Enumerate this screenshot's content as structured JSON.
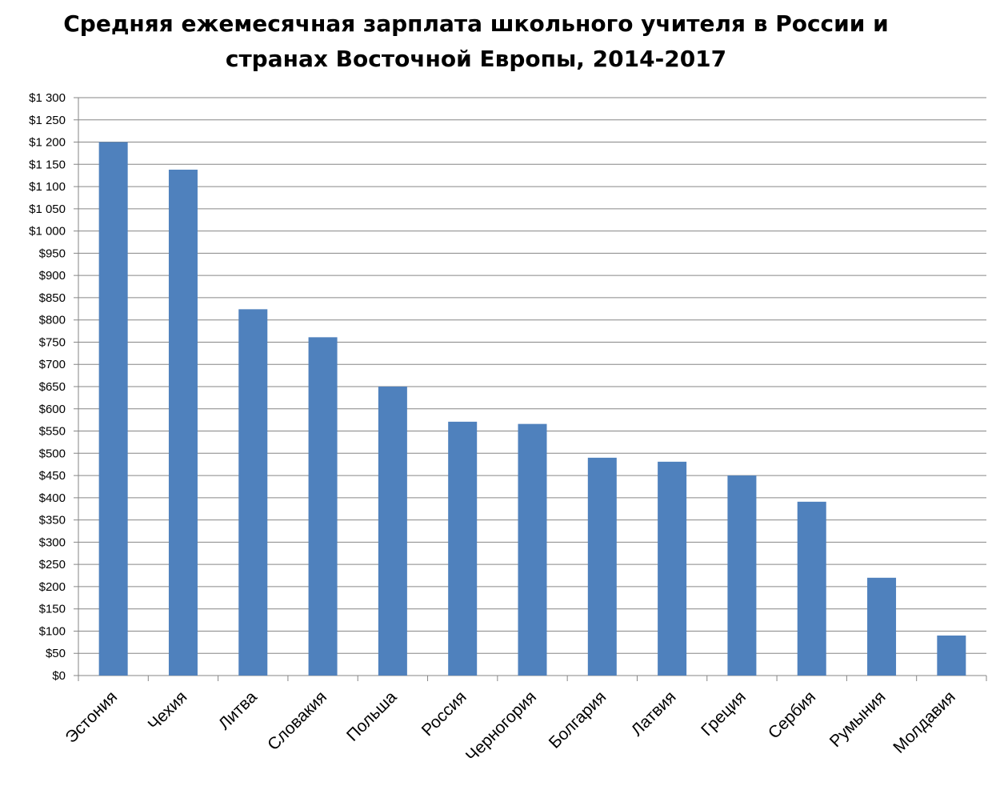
{
  "chart_data": {
    "type": "bar",
    "title": "Средняя ежемесячная зарплата школьного учителя в России и странах Восточной Европы, 2014-2017",
    "title_lines": [
      "Средняя ежемесячная зарплата школьного учителя в России и",
      "странах Восточной Европы, 2014-2017"
    ],
    "xlabel": "",
    "ylabel": "",
    "ylim": [
      0,
      1300
    ],
    "ytick_step": 50,
    "ytick_labels": [
      "$0",
      "$50",
      "$100",
      "$150",
      "$200",
      "$250",
      "$300",
      "$350",
      "$400",
      "$450",
      "$500",
      "$550",
      "$600",
      "$650",
      "$700",
      "$750",
      "$800",
      "$850",
      "$900",
      "$950",
      "$1 000",
      "$1 050",
      "$1 100",
      "$1 150",
      "$1 200",
      "$1 250",
      "$1 300"
    ],
    "grid": true,
    "legend": "none",
    "bar_color": "#4F81BD",
    "grid_color": "#868686",
    "categories": [
      "Эстония",
      "Чехия",
      "Литва",
      "Словакия",
      "Польша",
      "Россия",
      "Черногория",
      "Болгария",
      "Латвия",
      "Греция",
      "Сербия",
      "Румыния",
      "Молдавия"
    ],
    "values": [
      1200,
      1138,
      824,
      761,
      650,
      571,
      566,
      490,
      481,
      450,
      391,
      220,
      90
    ]
  }
}
